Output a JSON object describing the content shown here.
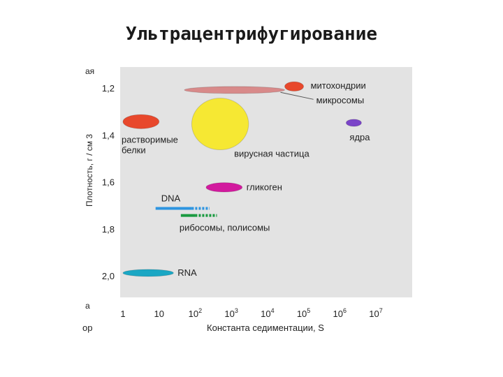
{
  "slide": {
    "title": "Ультрацентрифугирование"
  },
  "chart_data": {
    "type": "scatter",
    "title": "",
    "xlabel": "Константа седиментации, S",
    "ylabel": "Плотность, г / см 3",
    "x_scale": "log",
    "xlim": [
      1,
      10000000
    ],
    "ylim": [
      1.1,
      2.1
    ],
    "y_inverted": true,
    "x_ticks": [
      {
        "v": 1,
        "label": "1"
      },
      {
        "v": 10,
        "label": "10"
      },
      {
        "v": 100,
        "label": "10",
        "sup": "2"
      },
      {
        "v": 1000,
        "label": "10",
        "sup": "3"
      },
      {
        "v": 10000,
        "label": "10",
        "sup": "4"
      },
      {
        "v": 100000,
        "label": "10",
        "sup": "5"
      },
      {
        "v": 1000000,
        "label": "10",
        "sup": "6"
      },
      {
        "v": 10000000,
        "label": "10",
        "sup": "7"
      }
    ],
    "y_ticks": [
      {
        "v": 1.2,
        "label": "1,2"
      },
      {
        "v": 1.4,
        "label": "1,4"
      },
      {
        "v": 1.6,
        "label": "1,6"
      },
      {
        "v": 1.8,
        "label": "1,8"
      },
      {
        "v": 2.0,
        "label": "2,0"
      }
    ],
    "grid": false,
    "regions": [
      {
        "name": "митохондрии",
        "x": [
          30000,
          100000
        ],
        "y": [
          1.17,
          1.21
        ],
        "color": "#e8482c",
        "label_side": "right"
      },
      {
        "name": "микросомы",
        "x": [
          50,
          30000
        ],
        "y": [
          1.19,
          1.22
        ],
        "color": "#d88a8a",
        "label_side": "right"
      },
      {
        "name": "растворимые белки",
        "x": [
          1,
          10
        ],
        "y": [
          1.31,
          1.37
        ],
        "color": "#e8482c",
        "label_side": "below"
      },
      {
        "name": "вирусная частица",
        "x": [
          80,
          3000
        ],
        "y": [
          1.24,
          1.46
        ],
        "color": "#f6e833",
        "label_side": "below-right"
      },
      {
        "name": "ядра",
        "x": [
          1500000,
          4000000
        ],
        "y": [
          1.33,
          1.36
        ],
        "color": "#7a44c8",
        "label_side": "below"
      },
      {
        "name": "гликоген",
        "x": [
          200,
          2000
        ],
        "y": [
          1.6,
          1.64
        ],
        "color": "#d21a9e",
        "label_side": "right"
      },
      {
        "name": "RNA",
        "x": [
          1,
          25
        ],
        "y": [
          1.97,
          2.0
        ],
        "color": "#1aa7c4",
        "label_side": "right"
      }
    ],
    "segments": [
      {
        "name": "DNA",
        "x": [
          8,
          80
        ],
        "y": 1.71,
        "color": "#2e95e0",
        "dashed_to": 250
      },
      {
        "name": "рибосомы, полисомы",
        "x": [
          40,
          100
        ],
        "y": 1.74,
        "color": "#1a9a40",
        "dashed_to": 400
      }
    ],
    "edge_fragments": {
      "left": [
        "ая",
        "а",
        "ор"
      ]
    }
  }
}
